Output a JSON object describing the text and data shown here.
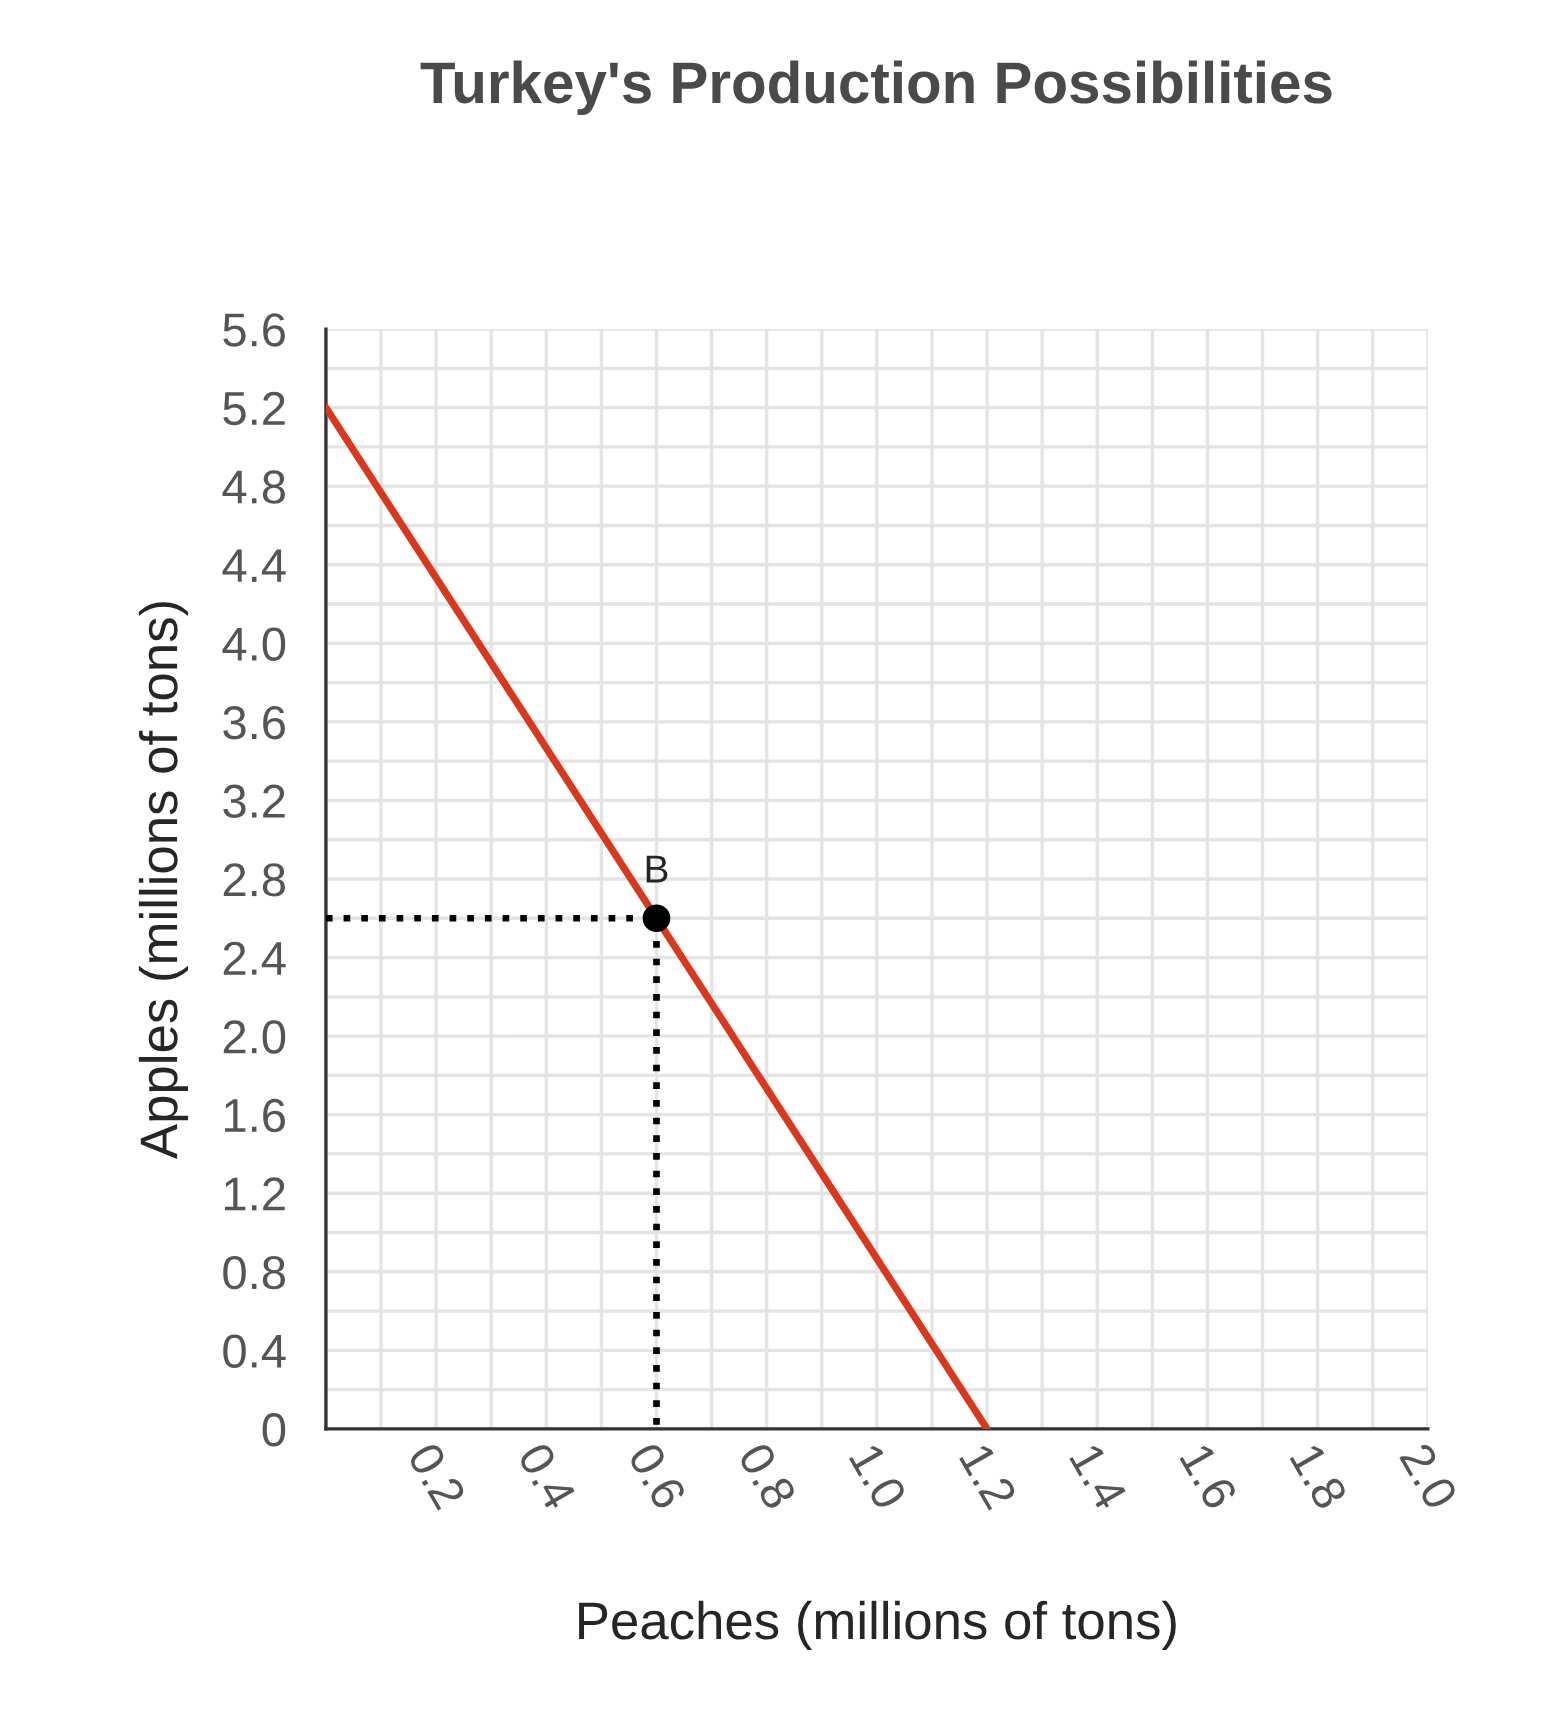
{
  "chart_data": {
    "type": "line",
    "title": "Turkey's Production Possibilities",
    "xlabel": "Peaches (millions of tons)",
    "ylabel": "Apples (millions of tons)",
    "xlim": [
      0,
      2.0
    ],
    "ylim": [
      0,
      5.6
    ],
    "xticks": [
      {
        "value": 0,
        "label": null
      },
      {
        "value": 0.1,
        "label": null
      },
      0.2,
      {
        "value": 0.3,
        "label": null
      },
      0.4,
      {
        "value": 0.5,
        "label": null
      },
      0.6,
      {
        "value": 0.7,
        "label": null
      },
      0.8,
      {
        "value": 0.9,
        "label": null
      },
      {
        "value": 1.0,
        "label": "1.0"
      },
      {
        "value": 1.1,
        "label": null
      },
      1.2,
      {
        "value": 1.3,
        "label": null
      },
      1.4,
      {
        "value": 1.5,
        "label": null
      },
      1.6,
      {
        "value": 1.7,
        "label": null
      },
      1.8,
      {
        "value": 1.9,
        "label": null
      },
      {
        "value": 2.0,
        "label": "2.0"
      }
    ],
    "yticks": [
      0,
      {
        "value": 0.2,
        "label": null
      },
      0.4,
      {
        "value": 0.6,
        "label": null
      },
      0.8,
      {
        "value": 1.0,
        "label": null
      },
      1.2,
      {
        "value": 1.4,
        "label": null
      },
      1.6,
      {
        "value": 1.8,
        "label": null
      },
      {
        "value": 2.0,
        "label": "2.0"
      },
      {
        "value": 2.2,
        "label": null
      },
      2.4,
      {
        "value": 2.6,
        "label": null
      },
      2.8,
      {
        "value": 3.0,
        "label": null
      },
      3.2,
      {
        "value": 3.4,
        "label": null
      },
      3.6,
      {
        "value": 3.8,
        "label": null
      },
      {
        "value": 4.0,
        "label": "4.0"
      },
      {
        "value": 4.2,
        "label": null
      },
      4.4,
      {
        "value": 4.6,
        "label": null
      },
      4.8,
      {
        "value": 5.0,
        "label": null
      },
      5.2,
      {
        "value": 5.4,
        "label": null
      },
      5.6
    ],
    "grid": true,
    "series": [
      {
        "color": "#d9381e",
        "x": [
          0,
          1.2
        ],
        "values": [
          5.2,
          0
        ],
        "line_style": "solid"
      },
      {
        "color": "#000000",
        "x": [
          0,
          0.6,
          0.6
        ],
        "values": [
          2.6,
          2.6,
          0
        ],
        "line_style": "dotted"
      },
      {
        "type": "scatter",
        "color": "#000000",
        "x": [
          0.6
        ],
        "values": [
          2.6
        ],
        "marker": "circle"
      }
    ],
    "annotations": [
      {
        "text": "B",
        "x": 0.6,
        "y": 2.6
      }
    ]
  }
}
